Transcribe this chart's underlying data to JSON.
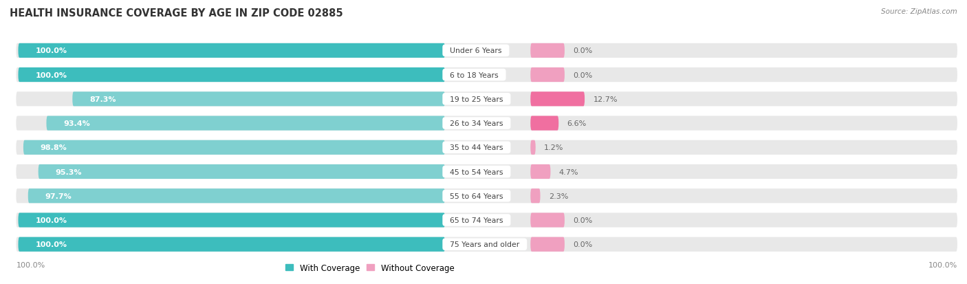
{
  "title": "HEALTH INSURANCE COVERAGE BY AGE IN ZIP CODE 02885",
  "source": "Source: ZipAtlas.com",
  "categories": [
    "Under 6 Years",
    "6 to 18 Years",
    "19 to 25 Years",
    "26 to 34 Years",
    "35 to 44 Years",
    "45 to 54 Years",
    "55 to 64 Years",
    "65 to 74 Years",
    "75 Years and older"
  ],
  "with_coverage": [
    100.0,
    100.0,
    87.3,
    93.4,
    98.8,
    95.3,
    97.7,
    100.0,
    100.0
  ],
  "without_coverage": [
    0.0,
    0.0,
    12.7,
    6.6,
    1.2,
    4.7,
    2.3,
    0.0,
    0.0
  ],
  "color_with_bright": "#3dbdbd",
  "color_with_light": "#7fd0d0",
  "color_without_bright": "#f06fa0",
  "color_without_light": "#f0a0c0",
  "color_bg_bar": "#e8e8e8",
  "title_fontsize": 10.5,
  "label_fontsize": 8.0,
  "tick_fontsize": 8.0,
  "legend_fontsize": 8.5
}
